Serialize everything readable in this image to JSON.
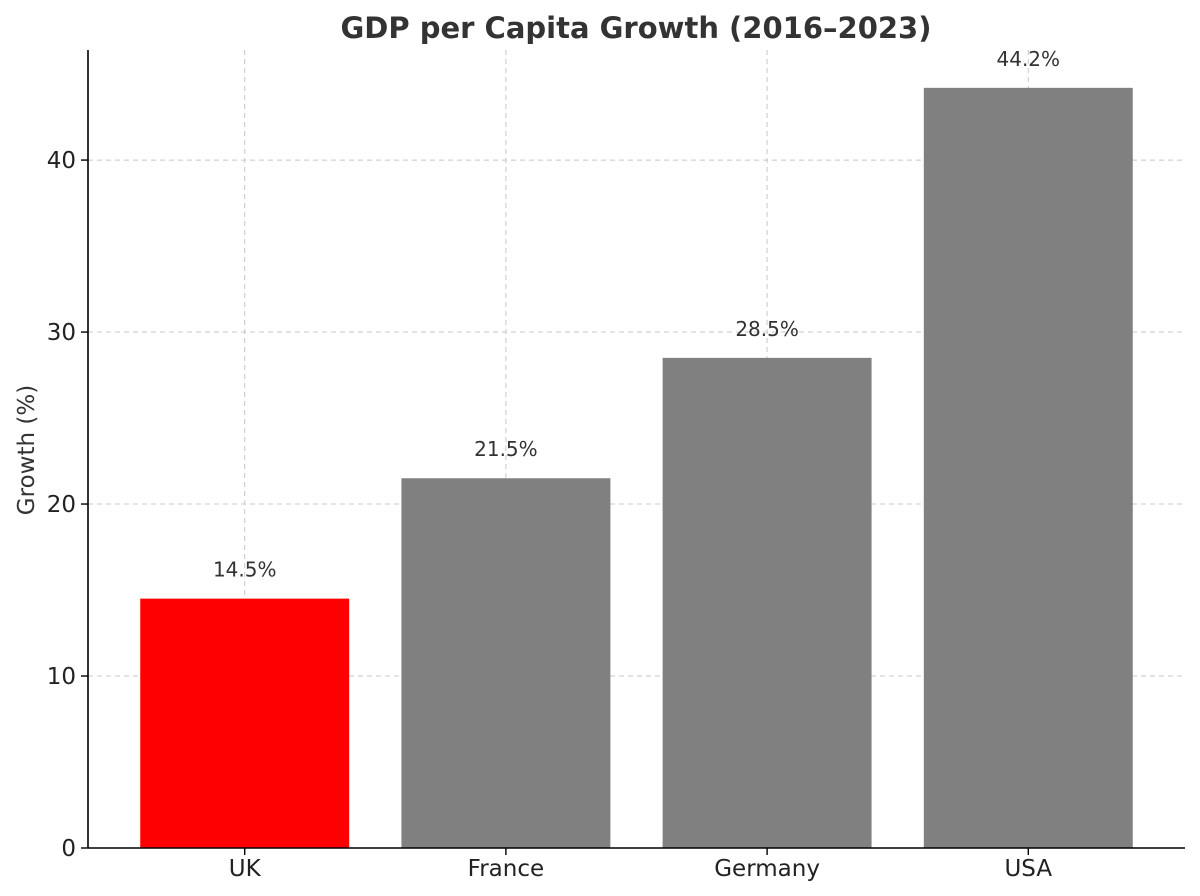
{
  "chart_data": {
    "type": "bar",
    "title": "GDP per Capita Growth (2016–2023)",
    "xlabel": "",
    "ylabel": "Growth (%)",
    "categories": [
      "UK",
      "France",
      "Germany",
      "USA"
    ],
    "values": [
      14.5,
      21.5,
      28.5,
      44.2
    ],
    "data_labels": [
      "14.5%",
      "21.5%",
      "28.5%",
      "44.2%"
    ],
    "bar_colors": [
      "#ff0000",
      "#808080",
      "#808080",
      "#808080"
    ],
    "ylim": [
      0,
      46.4
    ],
    "yticks": [
      0,
      10,
      20,
      30,
      40
    ],
    "grid": true,
    "legend": "none"
  }
}
